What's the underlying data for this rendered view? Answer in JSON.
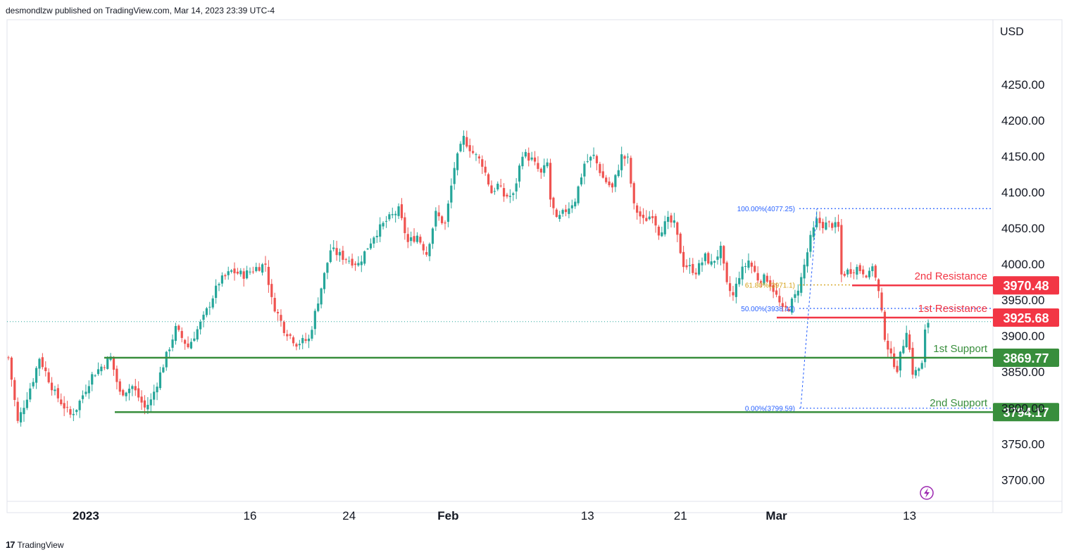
{
  "header": {
    "published": "desmondlzw published on TradingView.com, Mar 14, 2023 23:39 UTC-4"
  },
  "footer": {
    "brand": "TradingView",
    "logo_glyph": "17"
  },
  "colors": {
    "up": "#26a69a",
    "down": "#ef5350",
    "resistance": "#f23645",
    "support": "#388e3c",
    "fib": "#2962ff",
    "fib_mid": "#d4a017",
    "grid": "#e0e3eb",
    "text": "#131722"
  },
  "chart_data": {
    "type": "candlestick",
    "currency": "USD",
    "ylim": [
      3670,
      4340
    ],
    "y_ticks": [
      3700,
      3750,
      3800,
      3850,
      3900,
      3950,
      4000,
      4050,
      4100,
      4150,
      4200,
      4250
    ],
    "y_tick_labels": [
      "3700.00",
      "3750.00",
      "3800.00",
      "3850.00",
      "3900.00",
      "3950.00",
      "4000.00",
      "4050.00",
      "4100.00",
      "4150.00",
      "4200.00",
      "4250.00"
    ],
    "x_labels": [
      {
        "label": "2023",
        "index": 25,
        "bold": true
      },
      {
        "label": "16",
        "index": 78,
        "bold": false
      },
      {
        "label": "24",
        "index": 110,
        "bold": false
      },
      {
        "label": "Feb",
        "index": 142,
        "bold": true
      },
      {
        "label": "13",
        "index": 187,
        "bold": false
      },
      {
        "label": "21",
        "index": 217,
        "bold": false
      },
      {
        "label": "Mar",
        "index": 248,
        "bold": true
      },
      {
        "label": "13",
        "index": 291,
        "bold": false
      }
    ],
    "n_candles": 298,
    "anchors": [
      [
        0,
        3870
      ],
      [
        3,
        3780
      ],
      [
        8,
        3840
      ],
      [
        10,
        3870
      ],
      [
        15,
        3820
      ],
      [
        20,
        3790
      ],
      [
        22,
        3800
      ],
      [
        27,
        3845
      ],
      [
        33,
        3870
      ],
      [
        36,
        3820
      ],
      [
        40,
        3830
      ],
      [
        44,
        3800
      ],
      [
        46,
        3810
      ],
      [
        50,
        3860
      ],
      [
        54,
        3910
      ],
      [
        58,
        3885
      ],
      [
        63,
        3925
      ],
      [
        68,
        3975
      ],
      [
        72,
        3990
      ],
      [
        76,
        3985
      ],
      [
        80,
        3995
      ],
      [
        83,
        4000
      ],
      [
        85,
        3950
      ],
      [
        89,
        3910
      ],
      [
        93,
        3890
      ],
      [
        97,
        3895
      ],
      [
        100,
        3950
      ],
      [
        104,
        4020
      ],
      [
        108,
        4010
      ],
      [
        113,
        4000
      ],
      [
        118,
        4040
      ],
      [
        122,
        4060
      ],
      [
        126,
        4075
      ],
      [
        129,
        4030
      ],
      [
        132,
        4040
      ],
      [
        135,
        4015
      ],
      [
        138,
        4070
      ],
      [
        141,
        4055
      ],
      [
        144,
        4135
      ],
      [
        147,
        4175
      ],
      [
        150,
        4155
      ],
      [
        153,
        4140
      ],
      [
        156,
        4100
      ],
      [
        158,
        4110
      ],
      [
        160,
        4095
      ],
      [
        163,
        4095
      ],
      [
        166,
        4155
      ],
      [
        169,
        4145
      ],
      [
        172,
        4125
      ],
      [
        174,
        4140
      ],
      [
        175,
        4090
      ],
      [
        177,
        4060
      ],
      [
        180,
        4075
      ],
      [
        183,
        4090
      ],
      [
        186,
        4140
      ],
      [
        189,
        4150
      ],
      [
        192,
        4120
      ],
      [
        195,
        4105
      ],
      [
        198,
        4150
      ],
      [
        200,
        4145
      ],
      [
        202,
        4080
      ],
      [
        205,
        4060
      ],
      [
        208,
        4070
      ],
      [
        210,
        4045
      ],
      [
        213,
        4060
      ],
      [
        215,
        4055
      ],
      [
        218,
        4000
      ],
      [
        222,
        3990
      ],
      [
        225,
        4010
      ],
      [
        227,
        4000
      ],
      [
        230,
        4020
      ],
      [
        232,
        3970
      ],
      [
        234,
        3955
      ],
      [
        236,
        3985
      ],
      [
        239,
        4005
      ],
      [
        242,
        3980
      ],
      [
        245,
        3980
      ],
      [
        247,
        3965
      ],
      [
        250,
        3935
      ],
      [
        252,
        3940
      ],
      [
        254,
        3955
      ],
      [
        256,
        3980
      ],
      [
        259,
        4035
      ],
      [
        261,
        4060
      ],
      [
        263,
        4055
      ],
      [
        266,
        4055
      ],
      [
        268,
        4050
      ],
      [
        269,
        3985
      ],
      [
        271,
        3990
      ],
      [
        274,
        3995
      ],
      [
        276,
        3990
      ],
      [
        278,
        3985
      ],
      [
        279,
        4000
      ],
      [
        281,
        3960
      ],
      [
        283,
        3900
      ],
      [
        285,
        3870
      ],
      [
        287,
        3855
      ],
      [
        289,
        3890
      ],
      [
        290,
        3910
      ],
      [
        292,
        3850
      ],
      [
        293,
        3850
      ],
      [
        295,
        3860
      ],
      [
        296,
        3905
      ],
      [
        297,
        3920
      ]
    ],
    "levels": [
      {
        "name": "2nd Resistance",
        "value": 3970.48,
        "label": "3970.48",
        "kind": "resistance"
      },
      {
        "name": "1st Resistance",
        "value": 3925.68,
        "label": "3925.68",
        "kind": "resistance"
      },
      {
        "name": "1st Support",
        "value": 3869.77,
        "label": "3869.77",
        "kind": "support"
      },
      {
        "name": "2nd Support",
        "value": 3794.17,
        "label": "3794.17",
        "kind": "support"
      }
    ],
    "fib": [
      {
        "ratio": "100.00%",
        "value": 4077.25,
        "label": "100.00%(4077.25)"
      },
      {
        "ratio": "61.80%",
        "value": 3971.1,
        "label": "61.80%(3971.1)"
      },
      {
        "ratio": "50.00%",
        "value": 3938.42,
        "label": "50.00%(3938.42)"
      },
      {
        "ratio": "0.00%",
        "value": 3799.59,
        "label": "0.00%(3799.59)"
      }
    ],
    "last_price": 3920
  }
}
